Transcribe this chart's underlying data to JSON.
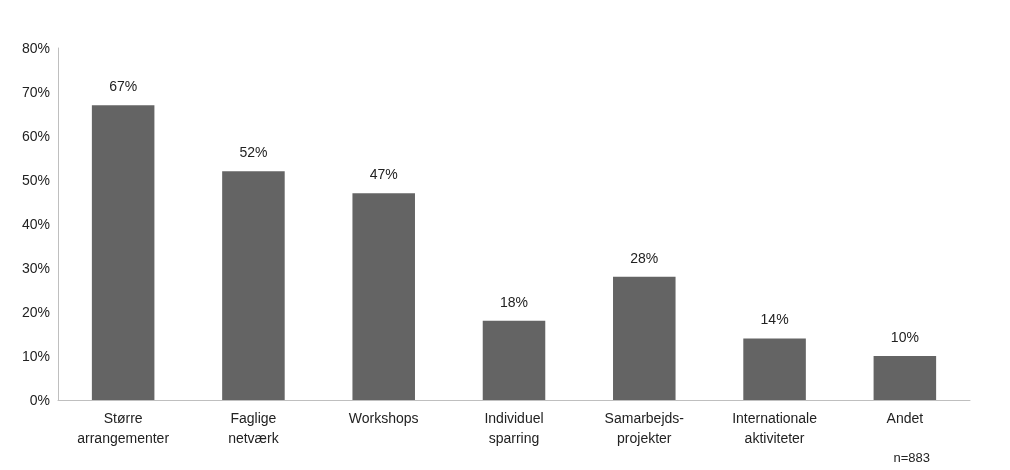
{
  "chart_data": {
    "type": "bar",
    "categories": [
      "Større arrangementer",
      "Faglige netværk",
      "Workshops",
      "Individuel sparring",
      "Samarbejds-projekter",
      "Internationale aktiviteter",
      "Andet"
    ],
    "values": [
      67,
      52,
      47,
      18,
      28,
      14,
      10
    ],
    "value_labels": [
      "67%",
      "52%",
      "47%",
      "18%",
      "28%",
      "14%",
      "10%"
    ],
    "color": "#646464",
    "ylim": [
      0,
      80
    ],
    "yticks": [
      {
        "value": 0,
        "label": "0%"
      },
      {
        "value": 10,
        "label": "10%"
      },
      {
        "value": 20,
        "label": "20%"
      },
      {
        "value": 30,
        "label": "30%"
      },
      {
        "value": 40,
        "label": "40%"
      },
      {
        "value": 50,
        "label": "50%"
      },
      {
        "value": 60,
        "label": "60%"
      },
      {
        "value": 70,
        "label": "70%"
      },
      {
        "value": 80,
        "label": "80%"
      }
    ],
    "grid": false,
    "annotations": [
      "n=883"
    ]
  }
}
